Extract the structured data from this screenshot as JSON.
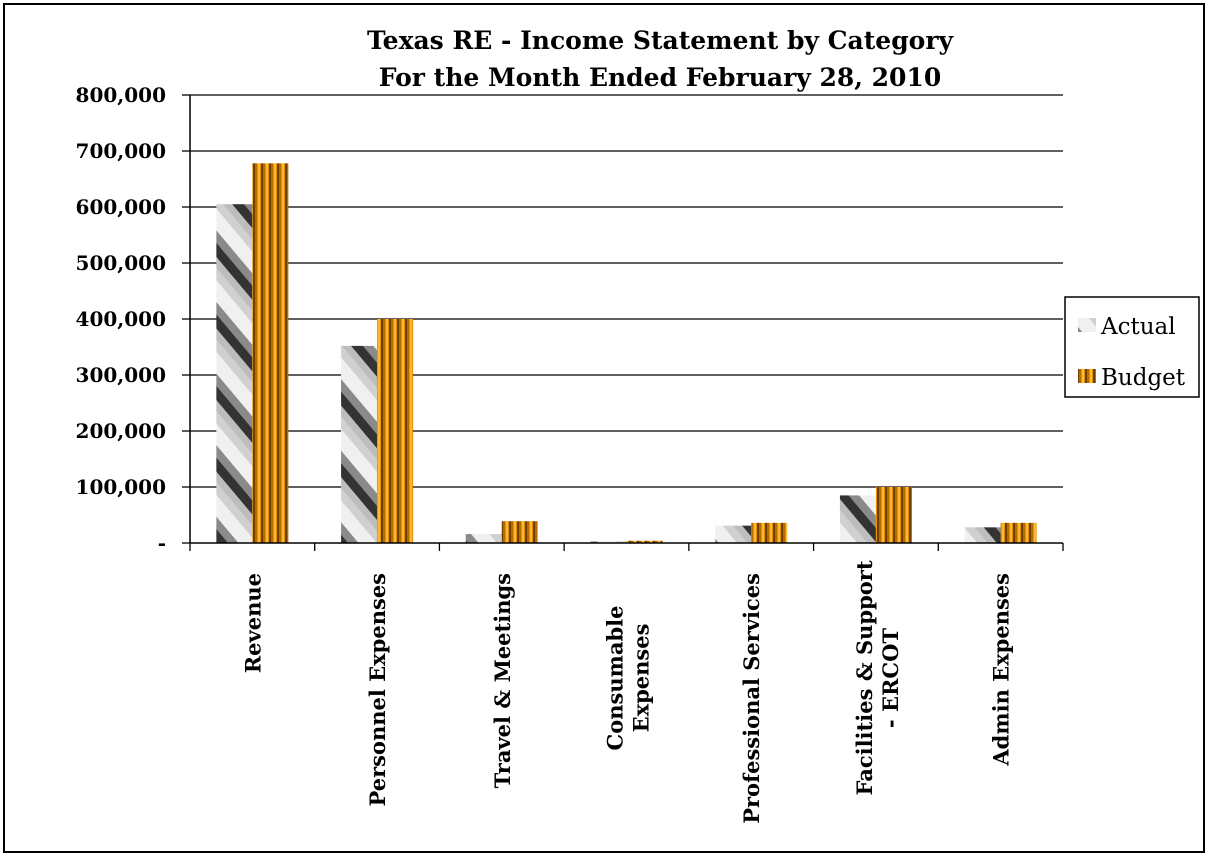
{
  "chart_data": {
    "type": "bar",
    "title_lines": [
      "Texas RE - Income Statement by Category",
      "For the Month Ended February 28, 2010"
    ],
    "categories": [
      [
        "Revenue"
      ],
      [
        "Personnel Expenses"
      ],
      [
        "Travel & Meetings"
      ],
      [
        "Consumable",
        "Expenses"
      ],
      [
        "Professional Services"
      ],
      [
        "Facilities & Support",
        "- ERCOT"
      ],
      [
        "Admin Expenses"
      ]
    ],
    "series": [
      {
        "name": "Actual",
        "values": [
          605000,
          352000,
          16000,
          3000,
          31000,
          85000,
          28000
        ]
      },
      {
        "name": "Budget",
        "values": [
          678000,
          400000,
          39000,
          4000,
          36000,
          100000,
          36000
        ]
      }
    ],
    "yticks": [
      {
        "value": 0,
        "label": "-"
      },
      {
        "value": 100000,
        "label": "100,000"
      },
      {
        "value": 200000,
        "label": "200,000"
      },
      {
        "value": 300000,
        "label": "300,000"
      },
      {
        "value": 400000,
        "label": "400,000"
      },
      {
        "value": 500000,
        "label": "500,000"
      },
      {
        "value": 600000,
        "label": "600,000"
      },
      {
        "value": 700000,
        "label": "700,000"
      },
      {
        "value": 800000,
        "label": "800,000"
      }
    ],
    "ylim": [
      0,
      800000
    ],
    "grid": true,
    "legend_position": "right"
  }
}
